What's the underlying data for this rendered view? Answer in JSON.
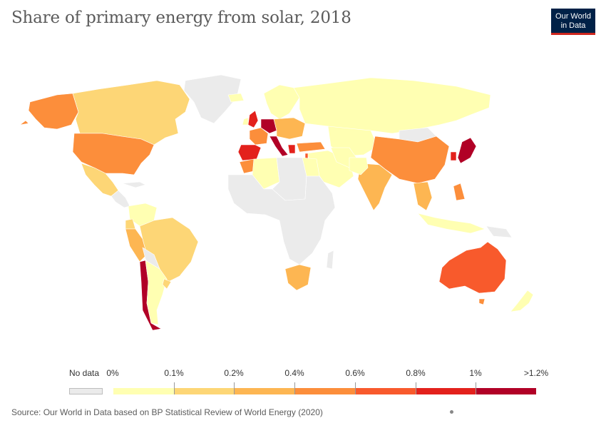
{
  "title": "Share of primary energy from solar, 2018",
  "logo": {
    "line1": "Our World",
    "line2": "in Data"
  },
  "legend": {
    "no_data_label": "No data",
    "no_data_color": "#ebebeb",
    "ticks": [
      "0%",
      "0.1%",
      "0.2%",
      "0.4%",
      "0.6%",
      "0.8%",
      "1%",
      ">1.2%"
    ],
    "bins": [
      {
        "color": "#ffffb2"
      },
      {
        "color": "#fdd676"
      },
      {
        "color": "#fdb652"
      },
      {
        "color": "#fc8e3b"
      },
      {
        "color": "#f85a2c"
      },
      {
        "color": "#e3211c"
      },
      {
        "color": "#b10026"
      }
    ]
  },
  "colors": {
    "no_data": "#ebebeb",
    "c0": "#ffffb2",
    "c1": "#fdd676",
    "c2": "#fdb652",
    "c3": "#fc8e3b",
    "c4": "#f85a2c",
    "c5": "#e3211c",
    "c6": "#b10026"
  },
  "source": "Source: Our World in Data based on BP Statistical Review of World Energy (2020)"
}
